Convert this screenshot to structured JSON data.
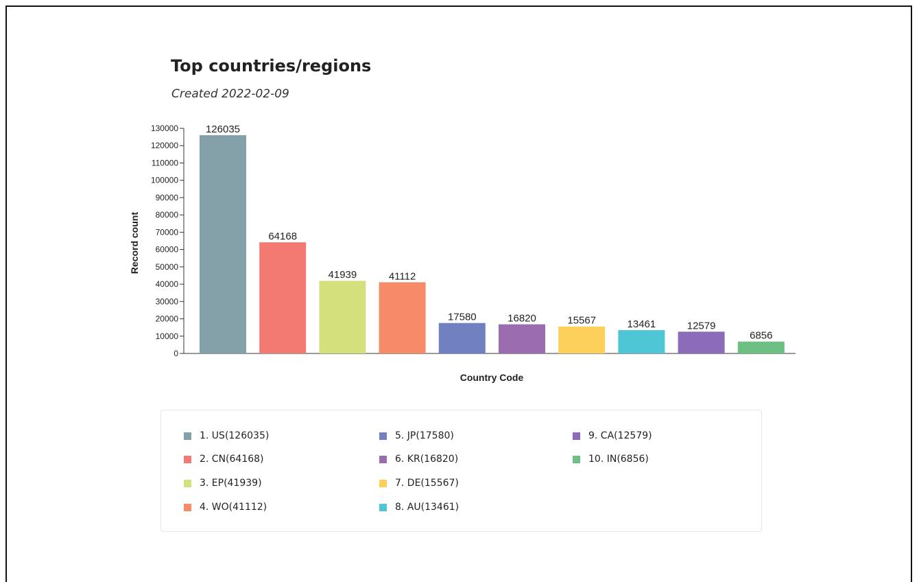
{
  "chart_data": {
    "type": "bar",
    "title": "Top countries/regions",
    "subtitle": "Created 2022-02-09",
    "xlabel": "Country Code",
    "ylabel": "Record count",
    "ylim": [
      0,
      130000
    ],
    "yticks": [
      "0",
      "10000",
      "20000",
      "30000",
      "40000",
      "50000",
      "60000",
      "70000",
      "80000",
      "90000",
      "100000",
      "110000",
      "120000",
      "130000"
    ],
    "categories": [
      "US",
      "CN",
      "EP",
      "WO",
      "JP",
      "KR",
      "DE",
      "AU",
      "CA",
      "IN"
    ],
    "values": [
      126035,
      64168,
      41939,
      41112,
      17580,
      16820,
      15567,
      13461,
      12579,
      6856
    ],
    "data_labels": [
      "126035",
      "64168",
      "41939",
      "41112",
      "17580",
      "16820",
      "15567",
      "13461",
      "12579",
      "6856"
    ],
    "colors": [
      "#84a0a8",
      "#f27a72",
      "#d4e07c",
      "#f78b69",
      "#6f81c0",
      "#9b6cb0",
      "#fdd05c",
      "#4ec6d6",
      "#8b6bba",
      "#6cc083"
    ],
    "grid": false,
    "legend_position": "bottom",
    "legend": [
      "1. US(126035)",
      "2. CN(64168)",
      "3. EP(41939)",
      "4. WO(41112)",
      "5. JP(17580)",
      "6. KR(16820)",
      "7. DE(15567)",
      "8. AU(13461)",
      "9. CA(12579)",
      "10. IN(6856)"
    ]
  }
}
